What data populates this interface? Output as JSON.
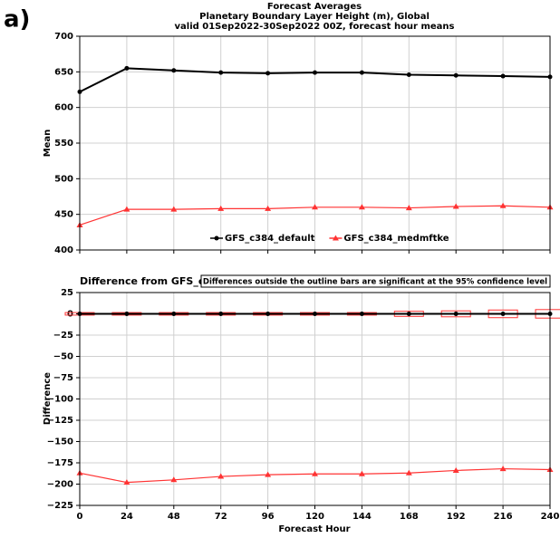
{
  "panel_label": "a)",
  "chart_data": [
    {
      "type": "line",
      "title": "Forecast Averages",
      "subtitle": [
        "Planetary Boundary Layer Height (m), Global",
        "valid 01Sep2022-30Sep2022 00Z, forecast hour means"
      ],
      "ylabel": "Mean",
      "x": [
        0,
        24,
        48,
        72,
        96,
        120,
        144,
        168,
        192,
        216,
        240
      ],
      "xlim": [
        0,
        240
      ],
      "ylim": [
        400,
        700
      ],
      "yticks": [
        400,
        450,
        500,
        550,
        600,
        650,
        700
      ],
      "grid": true,
      "legend": "bottom",
      "series": [
        {
          "name": "GFS_c384_default",
          "color": "#000000",
          "marker": "circle",
          "values": [
            622,
            655,
            652,
            649,
            648,
            649,
            649,
            646,
            645,
            644,
            643
          ]
        },
        {
          "name": "GFS_c384_medmftke",
          "color": "#ff3333",
          "marker": "triangle",
          "values": [
            435,
            457,
            457,
            458,
            458,
            460,
            460,
            459,
            461,
            462,
            460
          ]
        }
      ]
    },
    {
      "type": "line",
      "title": "Difference from GFS_c384_default",
      "annotation": "Differences outside the outline bars are significant at the 95% confidence level",
      "ylabel": "Difference",
      "xlabel": "Forecast Hour",
      "x": [
        0,
        24,
        48,
        72,
        96,
        120,
        144,
        168,
        192,
        216,
        240
      ],
      "xlim": [
        0,
        240
      ],
      "xticks": [
        0,
        24,
        48,
        72,
        96,
        120,
        144,
        168,
        192,
        216,
        240
      ],
      "ylim": [
        -225,
        25
      ],
      "yticks": [
        {
          "value": -225,
          "label": "−225"
        },
        {
          "value": -200,
          "label": "−200"
        },
        {
          "value": -175,
          "label": "−175"
        },
        {
          "value": -150,
          "label": "−150"
        },
        {
          "value": -125,
          "label": "−125"
        },
        {
          "value": -100,
          "label": "−100"
        },
        {
          "value": -75,
          "label": "−75"
        },
        {
          "value": -50,
          "label": "−50"
        },
        {
          "value": -25,
          "label": "−25"
        },
        0,
        25
      ],
      "grid": true,
      "ci": [
        1.5,
        1.5,
        1.5,
        1.5,
        1.5,
        1.5,
        1.5,
        3,
        3.5,
        4.5,
        5
      ],
      "ci_color": "#ff3333",
      "series": [
        {
          "color": "#000000",
          "marker": "circle",
          "values": [
            0,
            0,
            0,
            0,
            0,
            0,
            0,
            0,
            0,
            0,
            0
          ]
        },
        {
          "color": "#ff3333",
          "marker": "triangle",
          "values": [
            -187,
            -198,
            -195,
            -191,
            -189,
            -188,
            -188,
            -187,
            -184,
            -182,
            -183
          ]
        }
      ]
    }
  ]
}
